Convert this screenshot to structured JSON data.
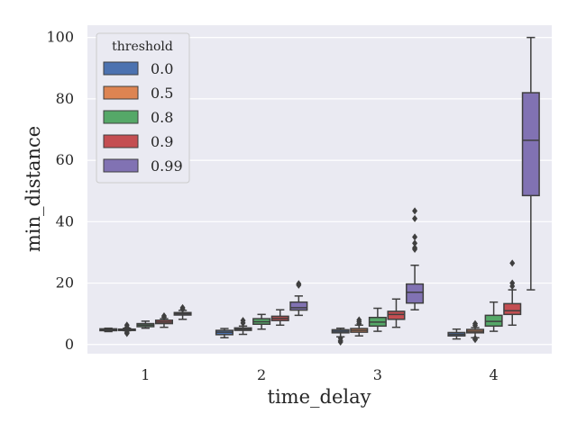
{
  "chart_data": {
    "type": "boxplot",
    "xlabel": "time_delay",
    "ylabel": "min_distance",
    "categories": [
      "1",
      "2",
      "3",
      "4"
    ],
    "ylim": [
      -3,
      104
    ],
    "yticks": [
      0,
      20,
      40,
      60,
      80,
      100
    ],
    "grid": true,
    "legend": {
      "title": "threshold",
      "placement": "top-left"
    },
    "series": [
      {
        "name": "0.0",
        "color": "#4c72b0",
        "boxes": [
          {
            "min": 4.2,
            "q1": 4.5,
            "median": 4.8,
            "q3": 5.1,
            "max": 5.3,
            "outliers": []
          },
          {
            "min": 2.2,
            "q1": 3.2,
            "median": 4.0,
            "q3": 4.6,
            "max": 5.2,
            "outliers": []
          },
          {
            "min": 2.5,
            "q1": 3.8,
            "median": 4.3,
            "q3": 4.8,
            "max": 5.3,
            "outliers": [
              0.8,
              1.2,
              2.0
            ]
          },
          {
            "min": 1.8,
            "q1": 2.8,
            "median": 3.3,
            "q3": 3.9,
            "max": 5.0,
            "outliers": []
          }
        ]
      },
      {
        "name": "0.5",
        "color": "#dd8452",
        "boxes": [
          {
            "min": 4.5,
            "q1": 4.6,
            "median": 4.8,
            "q3": 5.0,
            "max": 5.3,
            "outliers": [
              6.3,
              5.6,
              4.0,
              3.6
            ]
          },
          {
            "min": 3.3,
            "q1": 4.6,
            "median": 5.0,
            "q3": 5.4,
            "max": 6.0,
            "outliers": [
              7.8,
              7.0
            ]
          },
          {
            "min": 2.8,
            "q1": 4.0,
            "median": 4.6,
            "q3": 5.2,
            "max": 6.3,
            "outliers": [
              8.0,
              7.4,
              6.8
            ]
          },
          {
            "min": 2.2,
            "q1": 3.8,
            "median": 4.3,
            "q3": 4.9,
            "max": 5.5,
            "outliers": [
              6.8,
              6.2,
              2.0,
              1.6
            ]
          }
        ]
      },
      {
        "name": "0.8",
        "color": "#55a868",
        "boxes": [
          {
            "min": 5.3,
            "q1": 5.8,
            "median": 6.3,
            "q3": 6.8,
            "max": 7.6,
            "outliers": []
          },
          {
            "min": 5.0,
            "q1": 6.6,
            "median": 7.4,
            "q3": 8.4,
            "max": 9.8,
            "outliers": []
          },
          {
            "min": 4.3,
            "q1": 6.0,
            "median": 7.3,
            "q3": 8.8,
            "max": 11.8,
            "outliers": []
          },
          {
            "min": 4.3,
            "q1": 6.0,
            "median": 7.5,
            "q3": 9.5,
            "max": 13.8,
            "outliers": []
          }
        ]
      },
      {
        "name": "0.9",
        "color": "#c44e52",
        "boxes": [
          {
            "min": 5.6,
            "q1": 6.8,
            "median": 7.3,
            "q3": 7.9,
            "max": 8.4,
            "outliers": [
              9.3,
              8.9
            ]
          },
          {
            "min": 6.3,
            "q1": 7.8,
            "median": 8.5,
            "q3": 9.2,
            "max": 11.3,
            "outliers": []
          },
          {
            "min": 5.6,
            "q1": 8.2,
            "median": 9.8,
            "q3": 10.8,
            "max": 14.8,
            "outliers": []
          },
          {
            "min": 6.3,
            "q1": 9.8,
            "median": 11.0,
            "q3": 13.3,
            "max": 17.8,
            "outliers": [
              26.5,
              20.0,
              19.0
            ]
          }
        ]
      },
      {
        "name": "0.99",
        "color": "#8172b3",
        "boxes": [
          {
            "min": 8.2,
            "q1": 9.6,
            "median": 10.0,
            "q3": 10.4,
            "max": 11.1,
            "outliers": [
              12.0,
              11.5
            ]
          },
          {
            "min": 9.5,
            "q1": 11.2,
            "median": 12.0,
            "q3": 13.8,
            "max": 15.8,
            "outliers": [
              19.8,
              19.3
            ]
          },
          {
            "min": 11.3,
            "q1": 13.5,
            "median": 17.0,
            "q3": 19.7,
            "max": 25.8,
            "outliers": [
              43.5,
              41.0,
              35.0,
              33.0,
              31.5,
              31.0
            ]
          },
          {
            "min": 17.8,
            "q1": 48.5,
            "median": 66.5,
            "q3": 82.0,
            "max": 100.0,
            "outliers": []
          }
        ]
      }
    ]
  }
}
